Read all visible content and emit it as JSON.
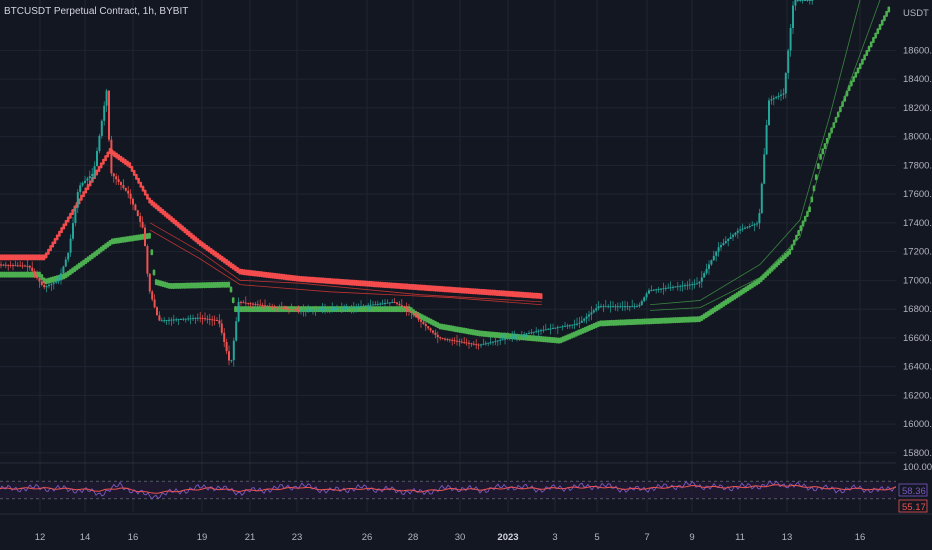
{
  "header": {
    "title": "BTCUSDT Perpetual Contract, 1h, BYBIT",
    "currency": "USDT"
  },
  "colors": {
    "background": "#131722",
    "grid": "#1f2430",
    "bull": "#26a69a",
    "bear": "#ef5350",
    "band_green": "#4caf50",
    "band_red": "#f44c4c",
    "rsi_line": "#7e57c2",
    "rsi_signal": "#ef5350",
    "rsi_fill": "#1f1a33"
  },
  "chart_data": [
    {
      "type": "candlestick",
      "title": "BTCUSDT Perpetual Contract, 1h, BYBIT",
      "ylim": [
        15750,
        18950
      ],
      "y_ticks": [
        15800,
        16000,
        16200,
        16400,
        16600,
        16800,
        17000,
        17200,
        17400,
        17600,
        17800,
        18000,
        18200,
        18400,
        18600
      ],
      "y_tick_labels": [
        "15800.0",
        "16000.0",
        "16200.0",
        "16400.0",
        "16600.0",
        "16800.0",
        "17000.0",
        "17200.0",
        "17400.0",
        "17600.0",
        "17800.0",
        "18000.0",
        "18200.0",
        "18400.0",
        "18600.0"
      ],
      "x_tick_labels": [
        "12",
        "14",
        "16",
        "19",
        "21",
        "23",
        "26",
        "28",
        "30",
        "2023",
        "3",
        "5",
        "7",
        "9",
        "11",
        "13",
        "16"
      ],
      "series": [
        {
          "style": "support-dots",
          "color": "#4caf50",
          "points": [
            [
              0,
              17040
            ],
            [
              40,
              17040
            ],
            [
              45,
              16990
            ],
            [
              65,
              17030
            ],
            [
              85,
              17130
            ],
            [
              112,
              17270
            ],
            [
              150,
              17310
            ],
            [
              155,
              16990
            ],
            [
              170,
              16960
            ],
            [
              230,
              16970
            ],
            [
              235,
              16800
            ],
            [
              410,
              16800
            ],
            [
              415,
              16770
            ],
            [
              440,
              16680
            ],
            [
              480,
              16630
            ],
            [
              560,
              16580
            ],
            [
              600,
              16700
            ],
            [
              700,
              16730
            ],
            [
              760,
              17000
            ],
            [
              790,
              17200
            ],
            [
              810,
              17500
            ],
            [
              820,
              17850
            ],
            [
              850,
              18350
            ],
            [
              890,
              18900
            ]
          ]
        },
        {
          "style": "resistance-dots",
          "color": "#f44c4c",
          "points": [
            [
              0,
              17160
            ],
            [
              45,
              17160
            ],
            [
              110,
              17900
            ],
            [
              130,
              17800
            ],
            [
              150,
              17550
            ],
            [
              200,
              17260
            ],
            [
              240,
              17060
            ],
            [
              300,
              17010
            ],
            [
              400,
              16960
            ],
            [
              542,
              16890
            ]
          ]
        },
        {
          "style": "mid-line",
          "color": "#e53935",
          "points": [
            [
              150,
              17400
            ],
            [
              200,
              17200
            ],
            [
              240,
              17000
            ],
            [
              300,
              16980
            ],
            [
              420,
              16900
            ],
            [
              542,
              16850
            ]
          ]
        },
        {
          "style": "mid-line",
          "color": "#e53935",
          "points": [
            [
              150,
              17350
            ],
            [
              200,
              17150
            ],
            [
              240,
              16970
            ],
            [
              330,
              16920
            ],
            [
              450,
              16880
            ],
            [
              542,
              16830
            ]
          ]
        },
        {
          "style": "mid-line",
          "color": "#43a047",
          "points": [
            [
              650,
              16790
            ],
            [
              700,
              16810
            ],
            [
              760,
              17020
            ],
            [
              800,
              17300
            ],
            [
              830,
              18000
            ],
            [
              880,
              18950
            ]
          ]
        },
        {
          "style": "mid-line",
          "color": "#43a047",
          "points": [
            [
              650,
              16830
            ],
            [
              700,
              16860
            ],
            [
              760,
              17110
            ],
            [
              800,
              17420
            ],
            [
              830,
              18150
            ],
            [
              860,
              18950
            ]
          ]
        },
        {
          "style": "price",
          "color": "#26a69a",
          "points": [
            [
              0,
              17110
            ],
            [
              30,
              17100
            ],
            [
              45,
              16950
            ],
            [
              60,
              17000
            ],
            [
              70,
              17200
            ],
            [
              80,
              17650
            ],
            [
              95,
              17750
            ],
            [
              108,
              18320
            ],
            [
              112,
              17750
            ],
            [
              130,
              17600
            ],
            [
              145,
              17350
            ],
            [
              150,
              16950
            ],
            [
              160,
              16720
            ],
            [
              200,
              16740
            ],
            [
              220,
              16720
            ],
            [
              232,
              16400
            ],
            [
              240,
              16850
            ],
            [
              290,
              16800
            ],
            [
              300,
              16790
            ],
            [
              350,
              16810
            ],
            [
              395,
              16850
            ],
            [
              410,
              16790
            ],
            [
              440,
              16600
            ],
            [
              480,
              16550
            ],
            [
              540,
              16650
            ],
            [
              580,
              16700
            ],
            [
              600,
              16820
            ],
            [
              640,
              16820
            ],
            [
              650,
              16930
            ],
            [
              700,
              16980
            ],
            [
              720,
              17230
            ],
            [
              740,
              17350
            ],
            [
              760,
              17400
            ],
            [
              770,
              18250
            ],
            [
              785,
              18300
            ],
            [
              795,
              18950
            ],
            [
              810,
              18950
            ]
          ]
        }
      ]
    },
    {
      "type": "line",
      "title": "",
      "ylim": [
        0,
        100
      ],
      "y_tick_labels": [
        "100.00"
      ],
      "value_labels": [
        "58.36",
        "55.17"
      ],
      "series": [
        {
          "color": "#7e57c2",
          "x": [
            0,
            40,
            80,
            100,
            120,
            150,
            180,
            210,
            240,
            270,
            300,
            330,
            360,
            390,
            420,
            450,
            480,
            510,
            540,
            570,
            600,
            630,
            660,
            690,
            720,
            750,
            780,
            810,
            840,
            860,
            880,
            896
          ],
          "values": [
            52,
            55,
            50,
            42,
            60,
            35,
            48,
            58,
            45,
            52,
            60,
            48,
            55,
            50,
            44,
            55,
            50,
            58,
            52,
            56,
            60,
            50,
            56,
            62,
            55,
            58,
            64,
            56,
            50,
            54,
            48,
            58
          ]
        },
        {
          "color": "#ef5350",
          "x": [
            0,
            40,
            80,
            100,
            120,
            150,
            180,
            210,
            240,
            270,
            300,
            330,
            360,
            390,
            420,
            450,
            480,
            510,
            540,
            570,
            600,
            630,
            660,
            690,
            720,
            750,
            780,
            810,
            840,
            860,
            880,
            896
          ],
          "values": [
            53,
            54,
            52,
            48,
            55,
            43,
            48,
            54,
            48,
            51,
            56,
            50,
            53,
            51,
            47,
            52,
            51,
            55,
            53,
            55,
            57,
            52,
            55,
            59,
            56,
            57,
            61,
            57,
            52,
            53,
            50,
            55
          ]
        }
      ]
    }
  ]
}
